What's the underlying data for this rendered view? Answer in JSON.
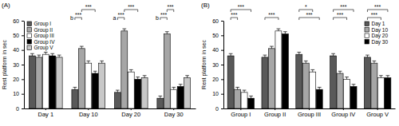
{
  "chart_data": [
    {
      "type": "bar",
      "title": "(A)",
      "y_label": "Rest platform in sec",
      "categories": [
        "Day 1",
        "Day 10",
        "Day 20",
        "Day 30"
      ],
      "series": [
        {
          "name": "Group I",
          "color": "#595959",
          "values": [
            36,
            13,
            11,
            7
          ],
          "errors": [
            1.5,
            1.5,
            1.5,
            1.5
          ]
        },
        {
          "name": "Group II",
          "color": "#a6a6a6",
          "values": [
            35,
            41,
            53,
            51
          ],
          "errors": [
            1.5,
            1.5,
            1.5,
            1.5
          ]
        },
        {
          "name": "Group III",
          "color": "#ffffff",
          "values": [
            37,
            31,
            25,
            13
          ],
          "errors": [
            1.5,
            1.5,
            1.5,
            1.5
          ]
        },
        {
          "name": "Group IV",
          "color": "#000000",
          "values": [
            36,
            24,
            20,
            15
          ],
          "errors": [
            1.5,
            1.5,
            1.5,
            1.5
          ]
        },
        {
          "name": "Group V",
          "color": "#c8c8c8",
          "values": [
            35,
            31,
            21,
            21
          ],
          "errors": [
            1.5,
            1.5,
            1.5,
            1.5
          ]
        }
      ],
      "ylim": [
        0,
        60
      ],
      "yticks": [
        0,
        10,
        20,
        30,
        40,
        50,
        60
      ],
      "legend": "top-left",
      "annotations": [
        {
          "category": "Day 10",
          "from": "Group I",
          "to": "Group II",
          "text": "***",
          "note": "b"
        },
        {
          "category": "Day 10",
          "from": "Group II",
          "to": "Group IV",
          "text": "***"
        },
        {
          "category": "Day 20",
          "from": "Group I",
          "to": "Group II",
          "text": "***",
          "note": "a"
        },
        {
          "category": "Day 20",
          "from": "Group II",
          "to": "Group IV",
          "text": "***"
        },
        {
          "category": "Day 30",
          "from": "Group I",
          "to": "Group II",
          "text": "***",
          "note": "b"
        },
        {
          "category": "Day 30",
          "from": "Group II",
          "to": "Group III",
          "text": "***"
        }
      ]
    },
    {
      "type": "bar",
      "title": "(B)",
      "y_label": "Rest platform in sec",
      "categories": [
        "Group I",
        "Group II",
        "Group III",
        "Group IV",
        "Group V"
      ],
      "series": [
        {
          "name": "Day 1",
          "color": "#595959",
          "values": [
            36,
            35,
            37,
            36,
            35
          ],
          "errors": [
            1.5,
            1.5,
            1.5,
            1.5,
            1.5
          ]
        },
        {
          "name": "Day 10",
          "color": "#a6a6a6",
          "values": [
            13,
            41,
            31,
            24,
            31
          ],
          "errors": [
            1.5,
            1.5,
            1.5,
            1.5,
            1.5
          ]
        },
        {
          "name": "Day 20",
          "color": "#ffffff",
          "values": [
            11,
            53,
            25,
            20,
            21
          ],
          "errors": [
            1.5,
            1.5,
            1.5,
            1.5,
            1.5
          ]
        },
        {
          "name": "Day 30",
          "color": "#000000",
          "values": [
            7,
            51,
            13,
            15,
            21
          ],
          "errors": [
            1.5,
            1.5,
            1.5,
            1.5,
            1.5
          ]
        }
      ],
      "ylim": [
        0,
        60
      ],
      "yticks": [
        0,
        10,
        20,
        30,
        40,
        50,
        60
      ],
      "legend": "top-right",
      "annotations": [
        {
          "category": "Group I",
          "from": "Day 1",
          "to": "Day 10",
          "text": "***"
        },
        {
          "category": "Group I",
          "from": "Day 1",
          "to": "Day 30",
          "text": "***"
        },
        {
          "category": "Group II",
          "from": "Day 1",
          "to": "Day 20",
          "text": "***"
        },
        {
          "category": "Group III",
          "from": "Day 1",
          "to": "Day 30",
          "text": "***"
        },
        {
          "category": "Group III",
          "from": "Day 1",
          "to": "Day 20",
          "text": "*"
        },
        {
          "category": "Group IV",
          "from": "Day 1",
          "to": "Day 20",
          "text": "***"
        },
        {
          "category": "Group IV",
          "from": "Day 1",
          "to": "Day 30",
          "text": "***"
        },
        {
          "category": "Group V",
          "from": "Day 1",
          "to": "Day 20",
          "text": "***"
        },
        {
          "category": "Group V",
          "from": "Day 1",
          "to": "Day 30",
          "text": "***"
        }
      ]
    }
  ]
}
